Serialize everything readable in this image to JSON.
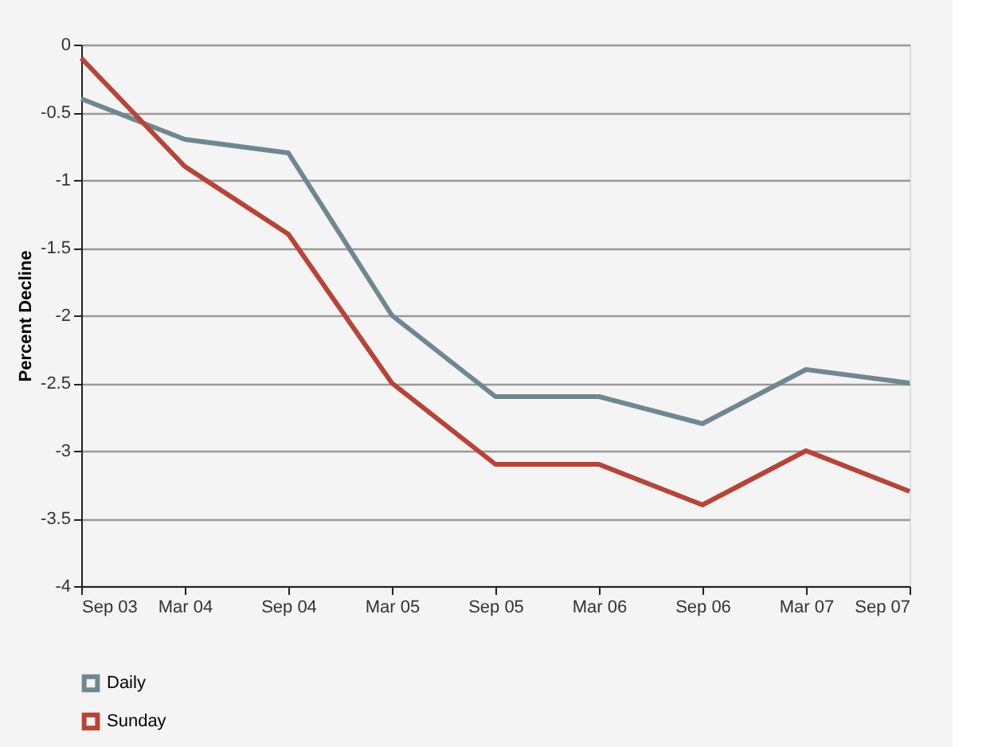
{
  "chart_data": {
    "type": "line",
    "ylabel": "Percent Decline",
    "categories": [
      "Sep 03",
      "Mar 04",
      "Sep 04",
      "Mar 05",
      "Sep 05",
      "Mar 06",
      "Sep 06",
      "Mar 07",
      "Sep 07"
    ],
    "series": [
      {
        "name": "Daily",
        "color": "#6f8790",
        "values": [
          -0.4,
          -0.7,
          -0.8,
          -2.0,
          -2.6,
          -2.6,
          -2.8,
          -2.4,
          -2.5
        ]
      },
      {
        "name": "Sunday",
        "color": "#b94336",
        "values": [
          -0.1,
          -0.9,
          -1.4,
          -2.5,
          -3.1,
          -3.1,
          -3.4,
          -3.0,
          -3.3
        ]
      }
    ],
    "ylim": [
      -4,
      0
    ],
    "yticks": [
      -4,
      -3.5,
      -3,
      -2.5,
      -2,
      -1.5,
      -1,
      -0.5,
      0
    ],
    "grid": "y",
    "legend": "bottom left",
    "marker": "none",
    "line_style": "solid"
  }
}
